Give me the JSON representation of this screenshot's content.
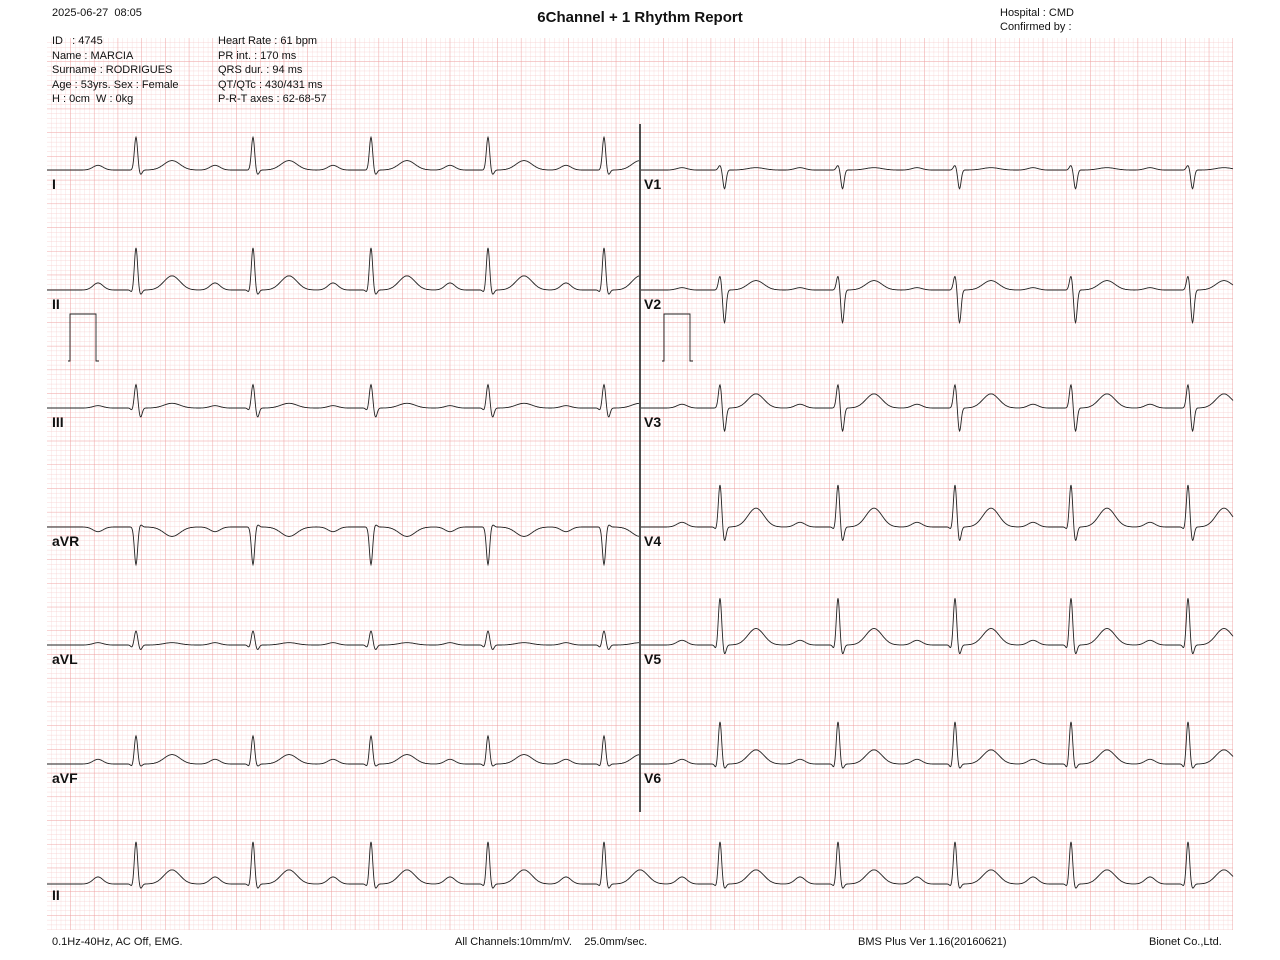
{
  "header": {
    "datetime": "2025-06-27  08:05",
    "title": "6Channel + 1 Rhythm Report",
    "hospital": "Hospital : CMD",
    "confirmed_by": "Confirmed by :"
  },
  "patient": [
    "ID   : 4745",
    "Name : MARCIA",
    "Surname : RODRIGUES",
    "Age : 53yrs. Sex : Female",
    "H : 0cm  W : 0kg"
  ],
  "measurements": [
    "Heart Rate : 61 bpm",
    "PR int. : 170 ms",
    "QRS dur. : 94 ms",
    "QT/QTc : 430/431 ms",
    "P-R-T axes : 62-68-57"
  ],
  "leads": {
    "left": [
      "I",
      "II",
      "III",
      "aVR",
      "aVL",
      "aVF"
    ],
    "right": [
      "V1",
      "V2",
      "V3",
      "V4",
      "V5",
      "V6"
    ],
    "rhythm": "II"
  },
  "footer": {
    "filter": "0.1Hz-40Hz, AC Off, EMG.",
    "channels": "All Channels:10mm/mV.    25.0mm/sec.",
    "version": "BMS Plus Ver 1.16(20160621)",
    "company": "Bionet Co.,Ltd."
  }
}
